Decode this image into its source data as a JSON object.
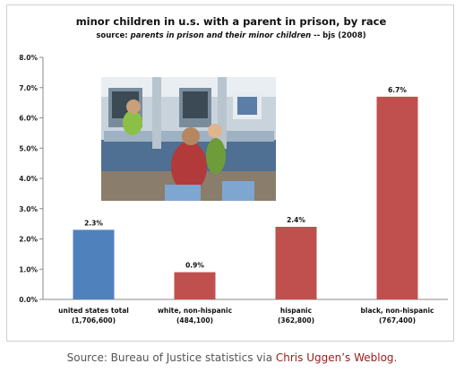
{
  "chart_data": {
    "type": "bar",
    "title": "minor children in u.s. with a parent in prison, by race",
    "subtitle_prefix": "source: ",
    "subtitle_italic": "parents in prison and their minor children",
    "subtitle_suffix": " -- bjs (2008)",
    "categories": [
      {
        "line1": "united states total",
        "line2": "(1,706,600)"
      },
      {
        "line1": "white, non-hispanic",
        "line2": "(484,100)"
      },
      {
        "line1": "hispanic",
        "line2": "(362,800)"
      },
      {
        "line1": "black, non-hispanic",
        "line2": "(767,400)"
      }
    ],
    "values": [
      2.3,
      0.9,
      2.4,
      6.7
    ],
    "value_labels": [
      "2.3%",
      "0.9%",
      "2.4%",
      "6.7%"
    ],
    "bar_colors": [
      "#4f81bd",
      "#c0504d",
      "#c0504d",
      "#c0504d"
    ],
    "ylim": [
      0,
      8
    ],
    "yticks": [
      "0.0%",
      "1.0%",
      "2.0%",
      "3.0%",
      "4.0%",
      "5.0%",
      "6.0%",
      "7.0%",
      "8.0%"
    ],
    "grid": false
  },
  "source_note": {
    "prefix": "Source: Bureau of Justice statistics via ",
    "link_text": "Chris Uggen’s Weblog",
    "suffix": "."
  }
}
